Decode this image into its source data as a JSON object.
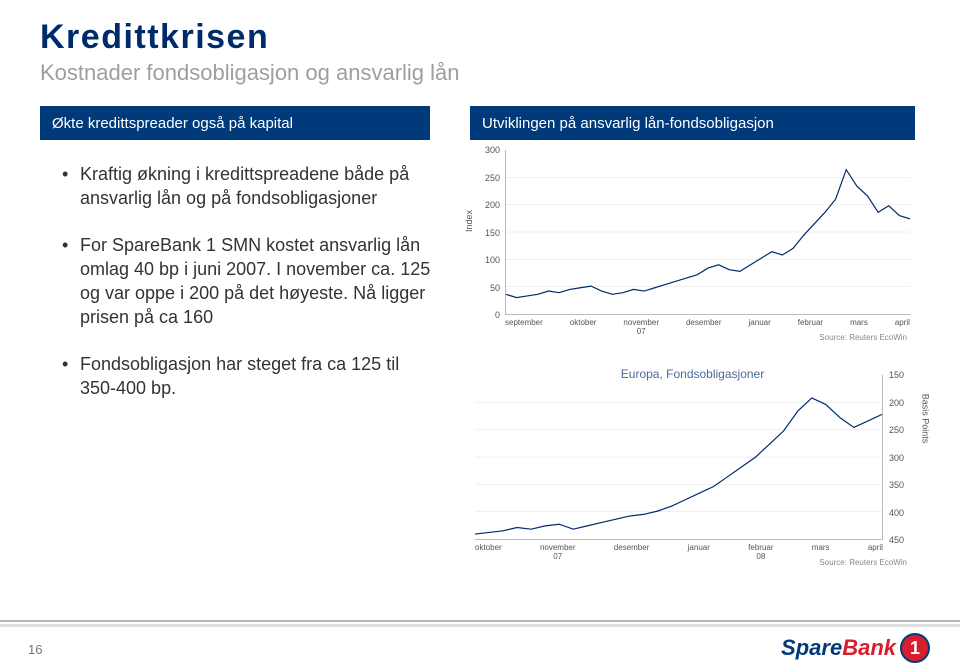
{
  "title": "Kredittkrisen",
  "subtitle": "Kostnader fondsobligasjon og ansvarlig lån",
  "header_left": "Økte kredittspreader også på kapital",
  "header_right": "Utviklingen på ansvarlig lån-fondsobligasjon",
  "bullets": [
    "Kraftig økning i kredittspreadene både  på ansvarlig lån og på fondsobligasjoner",
    "For SpareBank 1 SMN kostet ansvarlig lån omlag 40 bp i juni 2007. I november ca. 125 og var oppe i 200 på det høyeste. Nå ligger prisen på ca 160",
    "Fondsobligasjon har steget fra ca 125 til 350-400 bp."
  ],
  "chart_upper": {
    "y_label": "Index",
    "y_ticks": [
      "0",
      "50",
      "100",
      "150",
      "200",
      "250",
      "300"
    ],
    "ylim": [
      0,
      300
    ],
    "x_ticks": [
      "september",
      "oktober",
      "november\n07",
      "desember",
      "januar",
      "februar",
      "mars",
      "april"
    ],
    "source": "Source: Reuters EcoWin",
    "line_color": "#002b6b",
    "series_norm": [
      0.12,
      0.1,
      0.11,
      0.12,
      0.14,
      0.13,
      0.15,
      0.16,
      0.17,
      0.14,
      0.12,
      0.13,
      0.15,
      0.14,
      0.16,
      0.18,
      0.2,
      0.22,
      0.24,
      0.28,
      0.3,
      0.27,
      0.26,
      0.3,
      0.34,
      0.38,
      0.36,
      0.4,
      0.48,
      0.55,
      0.62,
      0.7,
      0.88,
      0.78,
      0.72,
      0.62,
      0.66,
      0.6,
      0.58
    ]
  },
  "chart_lower": {
    "title": "Europa, Fondsobligasjoner",
    "y_ticks": [
      "150",
      "200",
      "250",
      "300",
      "350",
      "400",
      "450"
    ],
    "ylim": [
      150,
      450
    ],
    "x_ticks": [
      "oktober",
      "november\n07",
      "desember",
      "januar",
      "februar\n08",
      "mars",
      "april"
    ],
    "y_label": "Basis Points",
    "source": "Source: Reuters EcoWin",
    "line_color": "#002b6b",
    "series_norm": [
      0.03,
      0.04,
      0.05,
      0.07,
      0.06,
      0.08,
      0.09,
      0.06,
      0.08,
      0.1,
      0.12,
      0.14,
      0.15,
      0.17,
      0.2,
      0.24,
      0.28,
      0.32,
      0.38,
      0.44,
      0.5,
      0.58,
      0.66,
      0.78,
      0.86,
      0.82,
      0.74,
      0.68,
      0.72,
      0.76
    ]
  },
  "colors": {
    "title": "#002b6b",
    "subtitle": "#9e9e9e",
    "header_bg": "#003a7a",
    "header_fg": "#ffffff",
    "text": "#333333",
    "grid": "#e0e0e0",
    "logo_blue": "#003a7a",
    "logo_red": "#d81e2c"
  },
  "page_number": "16",
  "logo": {
    "part1": "Spare",
    "part2": "Bank",
    "mark": "1"
  }
}
